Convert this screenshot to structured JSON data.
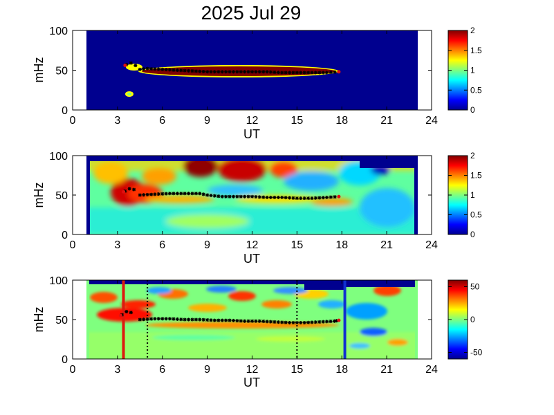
{
  "figure": {
    "title": "2025 Jul 29"
  },
  "chart_data": [
    {
      "type": "heatmap",
      "name": "panel-1",
      "xlabel": "UT",
      "ylabel": "mHz",
      "xlim": [
        0,
        24
      ],
      "ylim": [
        0,
        100
      ],
      "xticks": [
        0,
        3,
        6,
        9,
        12,
        15,
        18,
        21,
        24
      ],
      "yticks": [
        0,
        50,
        100
      ],
      "data_x_range": [
        1,
        23
      ],
      "colorbar": {
        "range": [
          0,
          2
        ],
        "ticks": [
          "0",
          "0.5",
          "1",
          "1.5",
          "2"
        ],
        "tick_values": [
          0,
          0.5,
          1,
          1.5,
          2
        ],
        "colormap": "jet"
      },
      "trace": [
        [
          4.5,
          51
        ],
        [
          5,
          52
        ],
        [
          6,
          51
        ],
        [
          7,
          50
        ],
        [
          8,
          49
        ],
        [
          9,
          48
        ],
        [
          10,
          48
        ],
        [
          11,
          48
        ],
        [
          12,
          48
        ],
        [
          13,
          48
        ],
        [
          14,
          47
        ],
        [
          15,
          47
        ],
        [
          16,
          47
        ],
        [
          17,
          47
        ],
        [
          17.8,
          48
        ]
      ],
      "trace_extra": [
        [
          3.6,
          57
        ],
        [
          3.9,
          59
        ],
        [
          4.2,
          56
        ]
      ]
    },
    {
      "type": "heatmap",
      "name": "panel-2",
      "xlabel": "UT",
      "ylabel": "mHz",
      "xlim": [
        0,
        24
      ],
      "ylim": [
        0,
        100
      ],
      "xticks": [
        0,
        3,
        6,
        9,
        12,
        15,
        18,
        21,
        24
      ],
      "yticks": [
        0,
        50,
        100
      ],
      "data_x_range": [
        1,
        23
      ],
      "colorbar": {
        "range": [
          0,
          2
        ],
        "ticks": [
          "0",
          "0.5",
          "1",
          "1.5",
          "2"
        ],
        "tick_values": [
          0,
          0.5,
          1,
          1.5,
          2
        ],
        "colormap": "jet"
      },
      "trace": [
        [
          4.5,
          50
        ],
        [
          5.5,
          51
        ],
        [
          6.5,
          52
        ],
        [
          7.5,
          52
        ],
        [
          8.5,
          52
        ],
        [
          9,
          50
        ],
        [
          10,
          48
        ],
        [
          11,
          48
        ],
        [
          12,
          48
        ],
        [
          13,
          47
        ],
        [
          14,
          47
        ],
        [
          15,
          46
        ],
        [
          16,
          46
        ],
        [
          17,
          47
        ],
        [
          17.8,
          48
        ]
      ],
      "trace_extra": [
        [
          3.5,
          55
        ],
        [
          3.8,
          58
        ],
        [
          4.1,
          57
        ]
      ]
    },
    {
      "type": "heatmap",
      "name": "panel-3",
      "xlabel": "UT",
      "ylabel": "mHz",
      "xlim": [
        0,
        24
      ],
      "ylim": [
        0,
        100
      ],
      "xticks": [
        0,
        3,
        6,
        9,
        12,
        15,
        18,
        21,
        24
      ],
      "yticks": [
        0,
        50,
        100
      ],
      "data_x_range": [
        1,
        23
      ],
      "colorbar": {
        "range": [
          -60,
          60
        ],
        "ticks": [
          "-50",
          "0",
          "50"
        ],
        "tick_values": [
          -50,
          0,
          50
        ],
        "colormap": "jet"
      },
      "trace": [
        [
          4.5,
          50
        ],
        [
          5.5,
          51
        ],
        [
          6.5,
          51
        ],
        [
          7.5,
          50
        ],
        [
          8.5,
          50
        ],
        [
          9.5,
          49
        ],
        [
          10.5,
          49
        ],
        [
          11.5,
          48
        ],
        [
          12.5,
          48
        ],
        [
          13.5,
          47
        ],
        [
          14.5,
          46
        ],
        [
          15.5,
          46
        ],
        [
          16.5,
          47
        ],
        [
          17.5,
          48
        ],
        [
          17.8,
          49
        ]
      ],
      "trace_extra": [
        [
          3.3,
          56
        ],
        [
          3.6,
          60
        ],
        [
          3.9,
          59
        ]
      ],
      "vertical_markers": [
        {
          "x": 3.4,
          "color": "#dd1a0f",
          "style": "solid"
        },
        {
          "x": 5.0,
          "color": "#000000",
          "style": "dotted"
        },
        {
          "x": 15.0,
          "color": "#000000",
          "style": "dotted"
        },
        {
          "x": 18.2,
          "color": "#1030d0",
          "style": "solid"
        }
      ]
    }
  ]
}
